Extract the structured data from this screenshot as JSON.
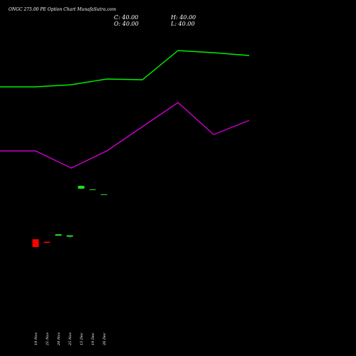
{
  "header": {
    "title": "ONGC 275.00  PE Option  Chart MunafaSutra.com",
    "close": "C: 40.00",
    "high": "H: 40.00",
    "open": "O: 40.00",
    "low": "L: 40.00"
  },
  "colors": {
    "background": "#000000",
    "up": "#22dd22",
    "down": "#ff0000",
    "line_top": "#00ee00",
    "line_bottom": "#cc00cc"
  },
  "chart_data": {
    "type": "candlestick",
    "categories": [
      "19 Nov",
      "21 Nov",
      "24 Nov",
      "25 Nov",
      "15 Dec",
      "19 Dec",
      "26 Dec"
    ],
    "ylim": [
      0,
      500
    ],
    "candles": [
      {
        "x": "19 Nov",
        "open": 164,
        "close": 153,
        "high": 164,
        "low": 153
      },
      {
        "x": "21 Nov",
        "open": 160.5,
        "close": 159,
        "high": 160.5,
        "low": 159
      },
      {
        "x": "24 Nov",
        "open": 169,
        "close": 171,
        "high": 171,
        "low": 169
      },
      {
        "x": "25 Nov",
        "open": 167.5,
        "close": 169.5,
        "high": 169.5,
        "low": 166.5
      },
      {
        "x": "15 Dec",
        "open": 235,
        "close": 239,
        "high": 239.5,
        "low": 234.5
      },
      {
        "x": "19 Dec",
        "open": 234,
        "close": 234,
        "high": 234,
        "low": 234
      },
      {
        "x": "26 Dec",
        "open": 227,
        "close": 227,
        "high": 227,
        "low": 227
      }
    ],
    "lines": [
      {
        "color": "#00ee00",
        "x": [
          0,
          50,
          100,
          150,
          200,
          250,
          300,
          350
        ],
        "values": [
          378,
          378,
          381,
          389,
          388,
          429,
          426,
          422
        ]
      },
      {
        "color": "#cc00cc",
        "x": [
          0,
          50,
          100,
          150,
          200,
          250,
          300,
          350
        ],
        "values": [
          288,
          288,
          264,
          288,
          322,
          356,
          311,
          331
        ]
      }
    ]
  }
}
